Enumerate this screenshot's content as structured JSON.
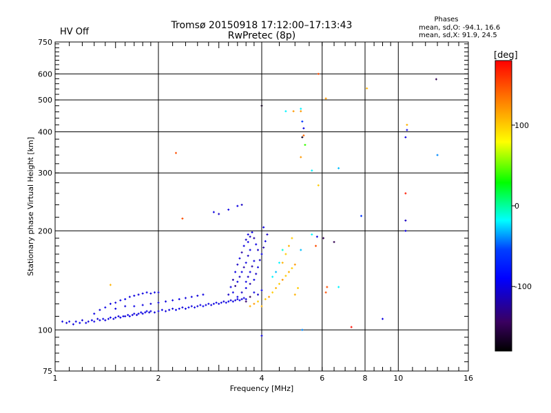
{
  "header": {
    "status": "HV Off",
    "status_color": "#e00000",
    "title_line1": "Tromsø 20150918 17:12:00–17:13:43",
    "title_line2": "RwPretec (8p)",
    "stats_title": "Phases",
    "stats_o": "mean, sd,O: -94.1, 16.6",
    "stats_x": "mean, sd,X:  91.9, 24.5"
  },
  "chart_data": {
    "type": "scatter",
    "title": "Tromsø 20150918 17:12:00–17:13:43",
    "subtitle": "RwPretec (8p)",
    "xlabel": "Frequency [MHz]",
    "ylabel": "Stationary phase Virtual Height [km]",
    "x_scale": "log",
    "y_scale": "log",
    "xlim": [
      1,
      16
    ],
    "ylim": [
      75,
      750
    ],
    "x_ticks": [
      1,
      2,
      4,
      6,
      8,
      10,
      16
    ],
    "x_tick_labels": [
      "1",
      "2",
      "4",
      "6",
      "8",
      "10",
      "16"
    ],
    "y_ticks": [
      75,
      100,
      200,
      300,
      400,
      500,
      600,
      750
    ],
    "y_tick_labels": [
      "75",
      "100",
      "200",
      "300",
      "400",
      "500",
      "600",
      "750"
    ],
    "grid": true,
    "colorbar": {
      "label": "[deg]",
      "range": [
        -180,
        180
      ],
      "ticks": [
        100,
        0,
        -100
      ],
      "tick_labels": [
        "100",
        "0",
        "-100"
      ],
      "colors": [
        "#000000",
        "#3a0060",
        "#0000ff",
        "#0040ff",
        "#00ffff",
        "#00ff00",
        "#ffff00",
        "#ff8000",
        "#ff0000"
      ]
    },
    "points": [
      [
        1.05,
        106,
        -100
      ],
      [
        1.08,
        105,
        -105
      ],
      [
        1.1,
        106,
        -98
      ],
      [
        1.13,
        104,
        -102
      ],
      [
        1.15,
        106,
        -100
      ],
      [
        1.18,
        105,
        -96
      ],
      [
        1.2,
        107,
        -104
      ],
      [
        1.23,
        105,
        -100
      ],
      [
        1.25,
        106,
        -102
      ],
      [
        1.28,
        107,
        -98
      ],
      [
        1.3,
        106,
        -100
      ],
      [
        1.33,
        108,
        -106
      ],
      [
        1.35,
        107,
        -100
      ],
      [
        1.38,
        108,
        -98
      ],
      [
        1.4,
        107,
        -102
      ],
      [
        1.43,
        108,
        -100
      ],
      [
        1.45,
        109,
        -96
      ],
      [
        1.48,
        108,
        -104
      ],
      [
        1.5,
        109,
        -100
      ],
      [
        1.53,
        110,
        -102
      ],
      [
        1.55,
        109,
        -98
      ],
      [
        1.58,
        110,
        -100
      ],
      [
        1.6,
        110,
        -104
      ],
      [
        1.63,
        111,
        -100
      ],
      [
        1.65,
        110,
        -96
      ],
      [
        1.68,
        111,
        -102
      ],
      [
        1.7,
        112,
        -100
      ],
      [
        1.73,
        111,
        -104
      ],
      [
        1.75,
        112,
        -100
      ],
      [
        1.78,
        113,
        -98
      ],
      [
        1.8,
        112,
        -102
      ],
      [
        1.83,
        113,
        -100
      ],
      [
        1.85,
        114,
        -96
      ],
      [
        1.88,
        113,
        -104
      ],
      [
        1.9,
        114,
        -100
      ],
      [
        1.95,
        113,
        -102
      ],
      [
        2.0,
        114,
        -100
      ],
      [
        2.05,
        115,
        -98
      ],
      [
        2.1,
        114,
        -104
      ],
      [
        2.15,
        115,
        -100
      ],
      [
        2.2,
        116,
        -102
      ],
      [
        2.25,
        115,
        -96
      ],
      [
        2.3,
        116,
        -100
      ],
      [
        2.35,
        117,
        -104
      ],
      [
        2.4,
        116,
        -100
      ],
      [
        2.45,
        117,
        -98
      ],
      [
        2.5,
        118,
        -102
      ],
      [
        2.55,
        117,
        -100
      ],
      [
        2.6,
        118,
        -104
      ],
      [
        2.65,
        119,
        -100
      ],
      [
        2.7,
        118,
        -96
      ],
      [
        2.75,
        119,
        -102
      ],
      [
        2.8,
        120,
        -100
      ],
      [
        2.85,
        119,
        -104
      ],
      [
        2.9,
        120,
        -100
      ],
      [
        2.95,
        121,
        -98
      ],
      [
        3.0,
        120,
        -102
      ],
      [
        3.05,
        121,
        -100
      ],
      [
        3.1,
        122,
        -104
      ],
      [
        3.15,
        121,
        -100
      ],
      [
        3.2,
        122,
        -96
      ],
      [
        3.25,
        123,
        -102
      ],
      [
        3.3,
        122,
        -100
      ],
      [
        3.35,
        123,
        -104
      ],
      [
        3.4,
        124,
        -100
      ],
      [
        3.45,
        123,
        -98
      ],
      [
        3.5,
        124,
        -102
      ],
      [
        3.55,
        125,
        -100
      ],
      [
        3.6,
        124,
        -104
      ],
      [
        1.3,
        112,
        -100
      ],
      [
        1.35,
        115,
        -104
      ],
      [
        1.4,
        117,
        -98
      ],
      [
        1.45,
        120,
        -100
      ],
      [
        1.5,
        121,
        -102
      ],
      [
        1.55,
        123,
        -100
      ],
      [
        1.6,
        124,
        -96
      ],
      [
        1.65,
        126,
        -102
      ],
      [
        1.7,
        127,
        -100
      ],
      [
        1.75,
        128,
        -104
      ],
      [
        1.8,
        129,
        -100
      ],
      [
        1.85,
        130,
        -98
      ],
      [
        1.9,
        129,
        -102
      ],
      [
        1.95,
        130,
        -100
      ],
      [
        2.0,
        130,
        -104
      ],
      [
        1.5,
        116,
        -100
      ],
      [
        1.6,
        118,
        -102
      ],
      [
        1.7,
        118,
        -98
      ],
      [
        1.8,
        119,
        -100
      ],
      [
        1.9,
        120,
        -104
      ],
      [
        2.0,
        121,
        -100
      ],
      [
        2.1,
        122,
        -102
      ],
      [
        2.2,
        123,
        -100
      ],
      [
        2.3,
        124,
        -96
      ],
      [
        2.4,
        125,
        -102
      ],
      [
        2.5,
        126,
        -100
      ],
      [
        2.6,
        127,
        -104
      ],
      [
        2.7,
        128,
        -100
      ],
      [
        3.2,
        128,
        -110
      ],
      [
        3.25,
        135,
        -100
      ],
      [
        3.3,
        142,
        -120
      ],
      [
        3.35,
        150,
        -100
      ],
      [
        3.4,
        158,
        -110
      ],
      [
        3.45,
        165,
        -100
      ],
      [
        3.5,
        172,
        -120
      ],
      [
        3.55,
        180,
        -100
      ],
      [
        3.6,
        188,
        -110
      ],
      [
        3.65,
        195,
        -100
      ],
      [
        3.3,
        130,
        -100
      ],
      [
        3.35,
        136,
        -130
      ],
      [
        3.4,
        140,
        -100
      ],
      [
        3.45,
        145,
        -110
      ],
      [
        3.5,
        150,
        -100
      ],
      [
        3.55,
        155,
        -120
      ],
      [
        3.6,
        160,
        -100
      ],
      [
        3.65,
        168,
        -110
      ],
      [
        3.7,
        175,
        -100
      ],
      [
        3.4,
        126,
        -100
      ],
      [
        3.5,
        130,
        -110
      ],
      [
        3.6,
        134,
        -100
      ],
      [
        3.7,
        138,
        -120
      ],
      [
        3.8,
        142,
        -100
      ],
      [
        3.85,
        148,
        -110
      ],
      [
        3.9,
        155,
        -100
      ],
      [
        3.95,
        163,
        -110
      ],
      [
        4.0,
        170,
        -100
      ],
      [
        4.05,
        178,
        -120
      ],
      [
        4.1,
        186,
        -100
      ],
      [
        4.15,
        195,
        -110
      ],
      [
        3.65,
        185,
        -100
      ],
      [
        3.7,
        192,
        -110
      ],
      [
        3.75,
        198,
        -100
      ],
      [
        3.8,
        190,
        -120
      ],
      [
        3.85,
        182,
        -100
      ],
      [
        3.9,
        175,
        -110
      ],
      [
        3.6,
        140,
        -100
      ],
      [
        3.65,
        145,
        -110
      ],
      [
        3.7,
        150,
        -100
      ],
      [
        3.75,
        156,
        -120
      ],
      [
        3.8,
        162,
        -100
      ],
      [
        3.6,
        122,
        -140
      ],
      [
        3.7,
        126,
        -150
      ],
      [
        3.8,
        130,
        -100
      ],
      [
        3.9,
        128,
        -110
      ],
      [
        4.0,
        132,
        -100
      ],
      [
        3.7,
        118,
        110
      ],
      [
        3.8,
        120,
        120
      ],
      [
        3.9,
        122,
        100
      ],
      [
        4.0,
        118,
        110
      ],
      [
        4.1,
        124,
        100
      ],
      [
        4.2,
        126,
        120
      ],
      [
        4.3,
        130,
        100
      ],
      [
        4.4,
        134,
        110
      ],
      [
        4.5,
        138,
        100
      ],
      [
        4.6,
        142,
        120
      ],
      [
        4.7,
        146,
        100
      ],
      [
        4.8,
        150,
        110
      ],
      [
        4.9,
        154,
        100
      ],
      [
        5.0,
        158,
        120
      ],
      [
        4.6,
        160,
        110
      ],
      [
        4.7,
        170,
        100
      ],
      [
        4.8,
        180,
        110
      ],
      [
        4.9,
        190,
        100
      ],
      [
        5.0,
        128,
        110
      ],
      [
        5.1,
        134,
        100
      ],
      [
        4.3,
        145,
        -20
      ],
      [
        4.4,
        150,
        -30
      ],
      [
        4.5,
        160,
        -20
      ],
      [
        4.6,
        175,
        -10
      ],
      [
        1.45,
        137,
        110
      ],
      [
        2.25,
        345,
        150
      ],
      [
        2.35,
        218,
        150
      ],
      [
        2.9,
        228,
        -100
      ],
      [
        3.0,
        225,
        -110
      ],
      [
        3.2,
        232,
        -100
      ],
      [
        3.4,
        238,
        -100
      ],
      [
        3.5,
        240,
        -110
      ],
      [
        4.0,
        480,
        -170
      ],
      [
        4.7,
        462,
        -20
      ],
      [
        4.95,
        462,
        120
      ],
      [
        5.2,
        462,
        120
      ],
      [
        5.2,
        470,
        -20
      ],
      [
        5.25,
        430,
        -60
      ],
      [
        5.3,
        410,
        -100
      ],
      [
        5.3,
        390,
        140
      ],
      [
        5.25,
        385,
        -170
      ],
      [
        5.35,
        365,
        40
      ],
      [
        5.2,
        335,
        120
      ],
      [
        5.6,
        305,
        -20
      ],
      [
        5.85,
        600,
        150
      ],
      [
        5.85,
        275,
        100
      ],
      [
        6.15,
        505,
        120
      ],
      [
        6.7,
        310,
        -30
      ],
      [
        7.8,
        222,
        -60
      ],
      [
        8.1,
        542,
        110
      ],
      [
        10.6,
        420,
        110
      ],
      [
        10.6,
        405,
        -100
      ],
      [
        10.5,
        385,
        -100
      ],
      [
        13.0,
        340,
        -40
      ],
      [
        12.9,
        578,
        -150
      ],
      [
        10.5,
        260,
        170
      ],
      [
        10.5,
        215,
        -110
      ],
      [
        10.5,
        200,
        -100
      ],
      [
        9.0,
        108,
        -100
      ],
      [
        7.3,
        102,
        175
      ],
      [
        6.2,
        135,
        150
      ],
      [
        6.15,
        130,
        150
      ],
      [
        6.7,
        135,
        -20
      ],
      [
        5.75,
        180,
        150
      ],
      [
        5.6,
        195,
        -20
      ],
      [
        5.8,
        192,
        -100
      ],
      [
        6.05,
        190,
        -150
      ],
      [
        6.5,
        185,
        -150
      ],
      [
        5.25,
        100,
        -40
      ],
      [
        4.0,
        96,
        -100
      ],
      [
        4.05,
        205,
        -100
      ],
      [
        5.2,
        175,
        -30
      ]
    ]
  }
}
